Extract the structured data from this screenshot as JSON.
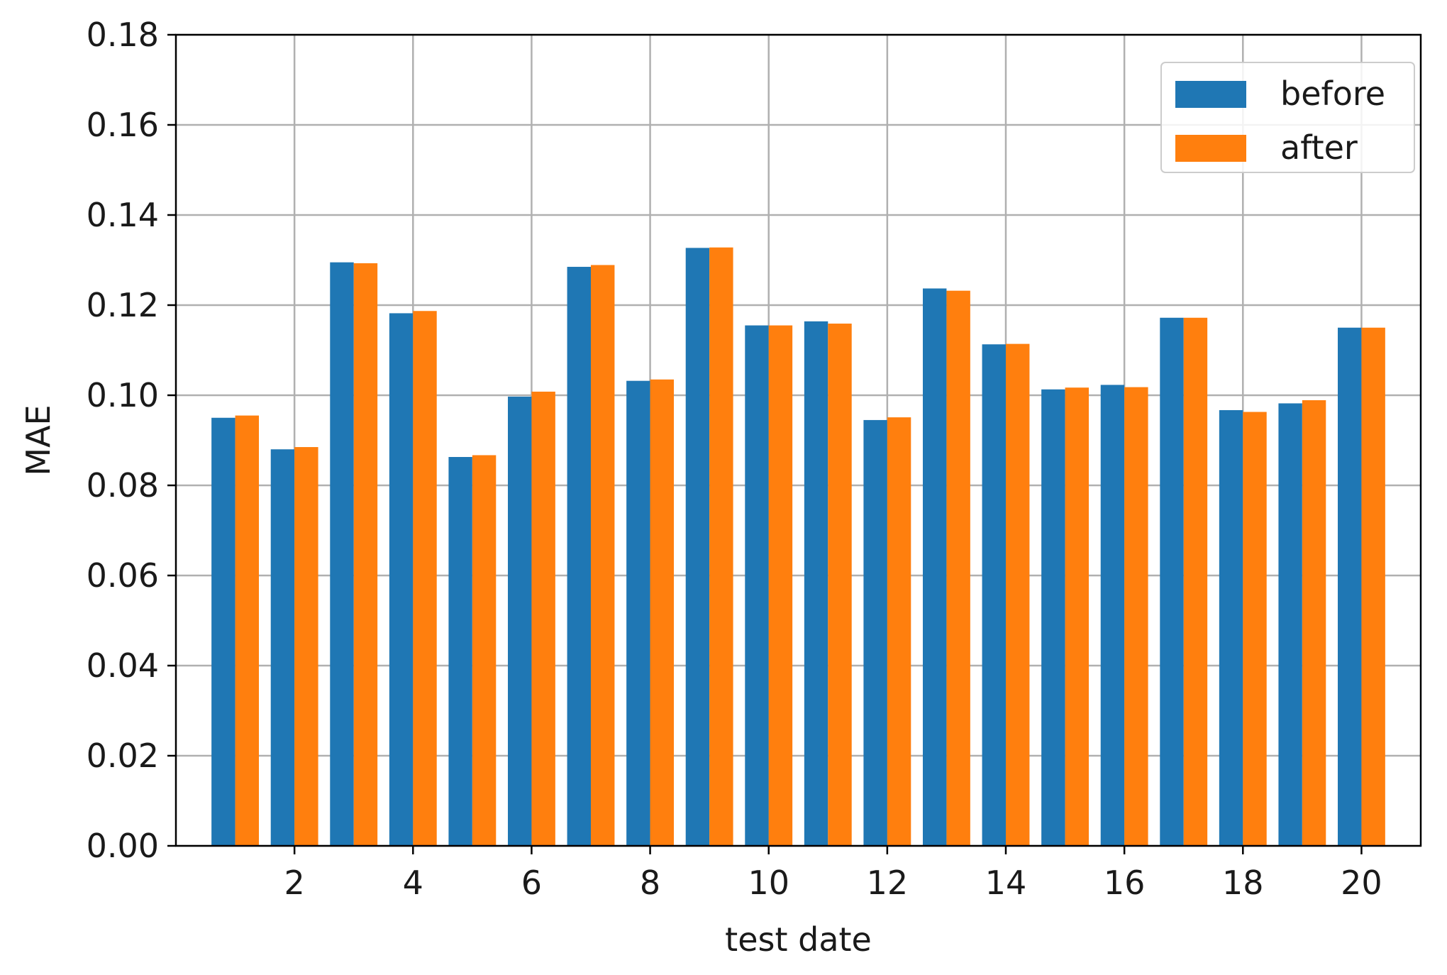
{
  "chart_data": {
    "type": "bar",
    "title": "",
    "xlabel": "test date",
    "ylabel": "MAE",
    "ylim": [
      0.0,
      0.18
    ],
    "xlim": [
      0.0,
      21.0
    ],
    "categories": [
      1,
      2,
      3,
      4,
      5,
      6,
      7,
      8,
      9,
      10,
      11,
      12,
      13,
      14,
      15,
      16,
      17,
      18,
      19,
      20
    ],
    "x_ticks": [
      2,
      4,
      6,
      8,
      10,
      12,
      14,
      16,
      18,
      20
    ],
    "x_tick_labels": [
      "2",
      "4",
      "6",
      "8",
      "10",
      "12",
      "14",
      "16",
      "18",
      "20"
    ],
    "y_ticks": [
      0.0,
      0.02,
      0.04,
      0.06,
      0.08,
      0.1,
      0.12,
      0.14,
      0.16,
      0.18
    ],
    "y_tick_labels": [
      "0.00",
      "0.02",
      "0.04",
      "0.06",
      "0.08",
      "0.10",
      "0.12",
      "0.14",
      "0.16",
      "0.18"
    ],
    "grid": true,
    "legend_position": "top-right",
    "series": [
      {
        "name": "before",
        "color": "#1f77b4",
        "values": [
          0.095,
          0.088,
          0.1295,
          0.1182,
          0.0863,
          0.0997,
          0.1285,
          0.1032,
          0.1327,
          0.1155,
          0.1164,
          0.0945,
          0.1237,
          0.1113,
          0.1013,
          0.1023,
          0.1172,
          0.0967,
          0.0982,
          0.115
        ]
      },
      {
        "name": "after",
        "color": "#ff7f0e",
        "values": [
          0.0955,
          0.0885,
          0.1293,
          0.1187,
          0.0867,
          0.1008,
          0.1289,
          0.1035,
          0.1328,
          0.1155,
          0.1159,
          0.0951,
          0.1232,
          0.1114,
          0.1017,
          0.1018,
          0.1172,
          0.0963,
          0.0989,
          0.115
        ]
      }
    ]
  }
}
